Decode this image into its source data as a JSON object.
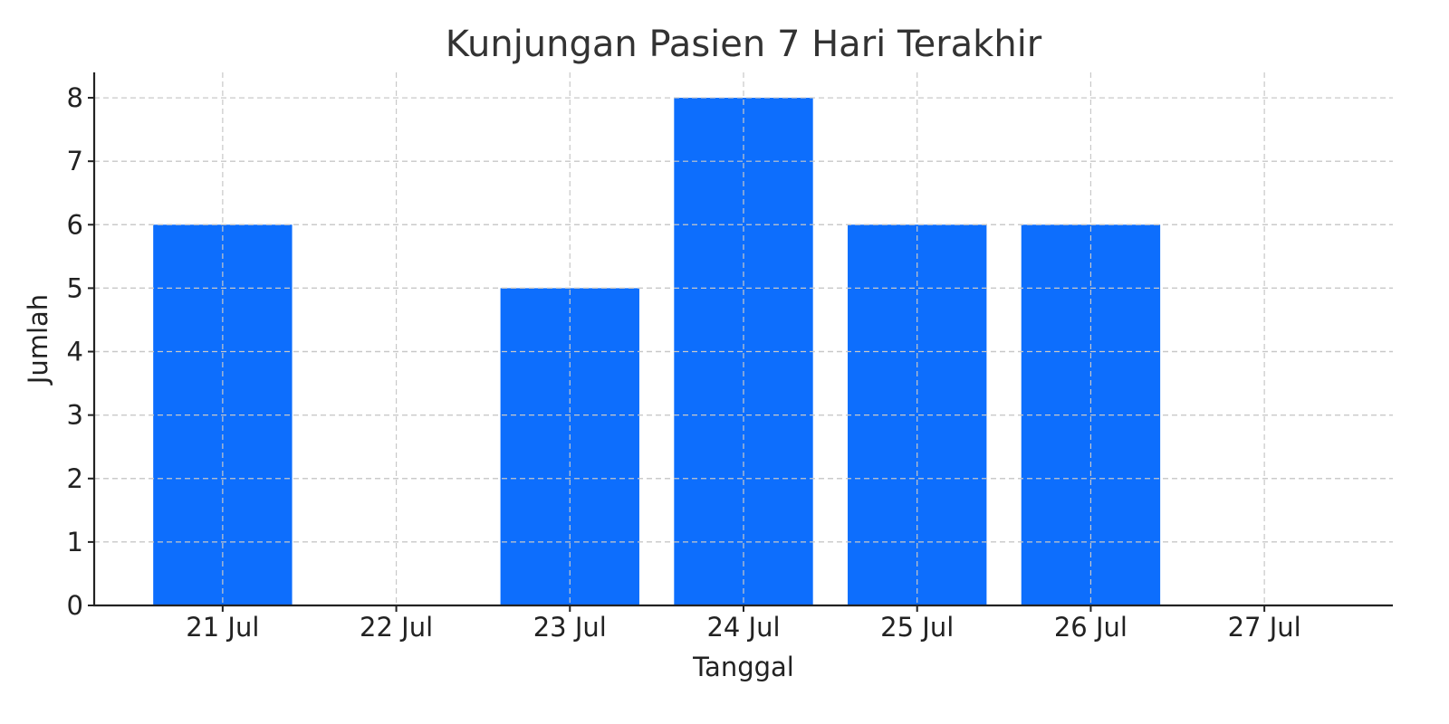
{
  "chart_data": {
    "type": "bar",
    "title": "Kunjungan Pasien 7 Hari Terakhir",
    "xlabel": "Tanggal",
    "ylabel": "Jumlah",
    "categories": [
      "21 Jul",
      "22 Jul",
      "23 Jul",
      "24 Jul",
      "25 Jul",
      "26 Jul",
      "27 Jul"
    ],
    "values": [
      6,
      0,
      5,
      8,
      6,
      6,
      0
    ],
    "ylim": [
      0,
      8.4
    ],
    "yticks": [
      0,
      1,
      2,
      3,
      4,
      5,
      6,
      7,
      8
    ],
    "grid": true,
    "bar_color": "#0d6efd"
  }
}
